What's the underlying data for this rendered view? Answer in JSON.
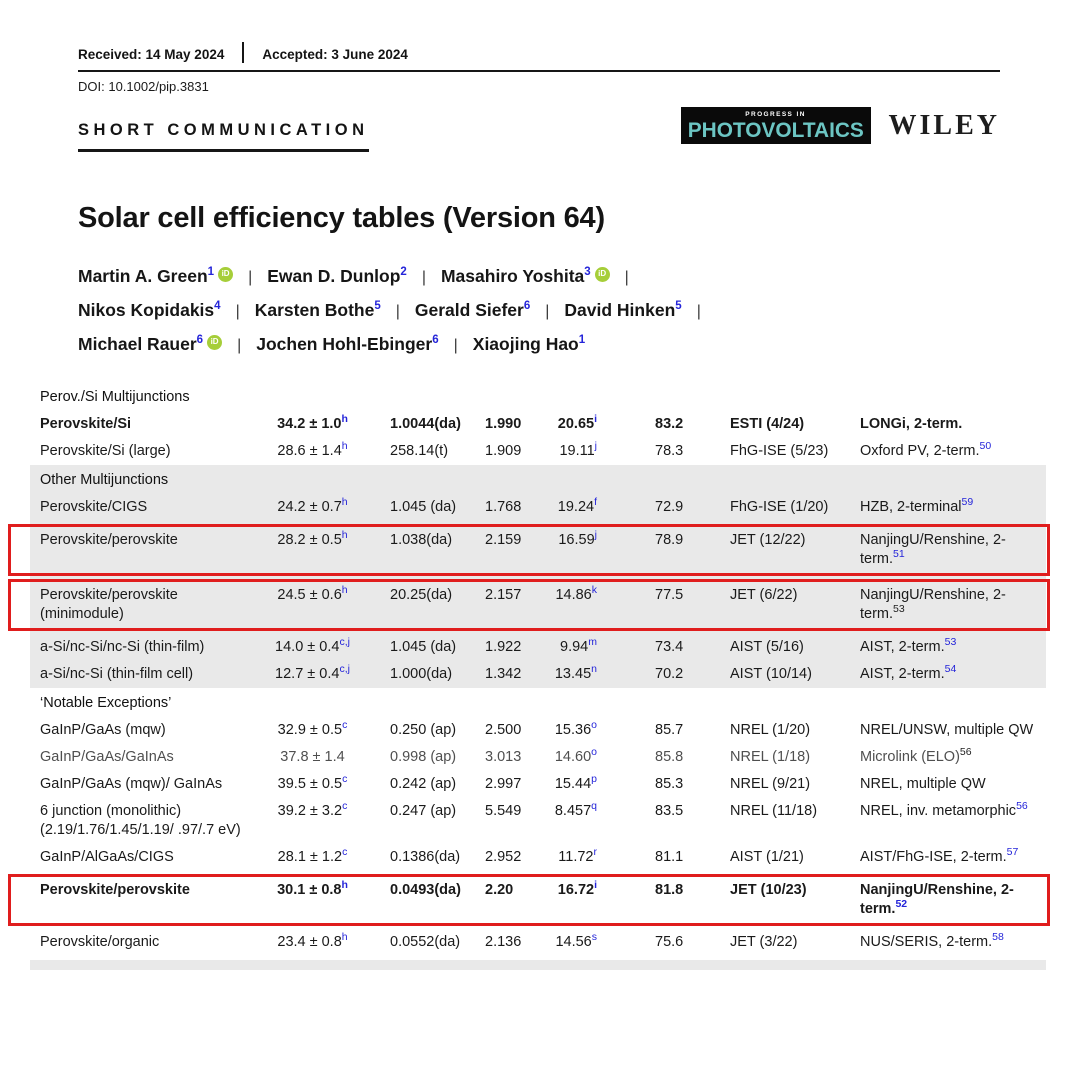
{
  "meta": {
    "received_label": "Received: 14 May 2024",
    "accepted_label": "Accepted: 3 June 2024",
    "doi": "DOI: 10.1002/pip.3831",
    "article_type": "SHORT COMMUNICATION"
  },
  "journal": {
    "tagline": "PROGRESS IN",
    "name": "PHOTOVOLTAICS",
    "publisher": "WILEY"
  },
  "title": "Solar cell efficiency tables (Version 64)",
  "author_lines": [
    {
      "items": [
        {
          "name": "Martin A. Green",
          "sup": "1",
          "orcid": true
        },
        {
          "name": "Ewan D. Dunlop",
          "sup": "2",
          "orcid": false
        },
        {
          "name": "Masahiro Yoshita",
          "sup": "3",
          "orcid": true
        }
      ],
      "trailing_separator": true
    },
    {
      "items": [
        {
          "name": "Nikos Kopidakis",
          "sup": "4",
          "orcid": false
        },
        {
          "name": "Karsten Bothe",
          "sup": "5",
          "orcid": false
        },
        {
          "name": "Gerald Siefer",
          "sup": "6",
          "orcid": false
        },
        {
          "name": "David Hinken",
          "sup": "5",
          "orcid": false
        }
      ],
      "trailing_separator": true
    },
    {
      "items": [
        {
          "name": "Michael Rauer",
          "sup": "6",
          "orcid": true
        },
        {
          "name": "Jochen Hohl-Ebinger",
          "sup": "6",
          "orcid": false
        },
        {
          "name": "Xiaojing Hao",
          "sup": "1",
          "orcid": false
        }
      ],
      "trailing_separator": false
    }
  ],
  "orcid_label": "iD",
  "table": {
    "sections": [
      {
        "label": "Perov./Si Multijunctions",
        "shaded": false,
        "rows": [
          {
            "classification": "Perovskite/Si",
            "bold": true,
            "boxed": false,
            "muted": false,
            "efficiency": "34.2 ± 1.0",
            "eff_sup": "h",
            "area": "1.0044(da)",
            "voc": "1.990",
            "jsc": "20.65",
            "jsc_sup": "i",
            "ff": "83.2",
            "test_centre": "ESTI (4/24)",
            "description": "LONGi, 2-term.",
            "desc_sup": "",
            "desc_sup_blue": false
          },
          {
            "classification": "Perovskite/Si (large)",
            "bold": false,
            "boxed": false,
            "muted": false,
            "efficiency": "28.6 ± 1.4",
            "eff_sup": "h",
            "area": "258.14(t)",
            "voc": "1.909",
            "jsc": "19.11",
            "jsc_sup": "j",
            "ff": "78.3",
            "test_centre": "FhG-ISE (5/23)",
            "description": "Oxford PV, 2-term.",
            "desc_sup": "50",
            "desc_sup_blue": true
          }
        ]
      },
      {
        "label": "Other Multijunctions",
        "shaded": true,
        "rows": [
          {
            "classification": "Perovskite/CIGS",
            "bold": false,
            "boxed": false,
            "muted": false,
            "efficiency": "24.2 ± 0.7",
            "eff_sup": "h",
            "area": "1.045 (da)",
            "voc": "1.768",
            "jsc": "19.24",
            "jsc_sup": "f",
            "ff": "72.9",
            "test_centre": "FhG-ISE (1/20)",
            "description": "HZB, 2-terminal",
            "desc_sup": "59",
            "desc_sup_blue": true
          },
          {
            "classification": "Perovskite/perovskite",
            "bold": false,
            "boxed": true,
            "muted": false,
            "efficiency": "28.2 ± 0.5",
            "eff_sup": "h",
            "area": "1.038(da)",
            "voc": "2.159",
            "jsc": "16.59",
            "jsc_sup": "j",
            "ff": "78.9",
            "test_centre": "JET (12/22)",
            "description": "NanjingU/Renshine, 2-term.",
            "desc_sup": "51",
            "desc_sup_blue": true
          },
          {
            "classification": "Perovskite/perovskite (minimodule)",
            "bold": false,
            "boxed": true,
            "muted": false,
            "efficiency": "24.5 ± 0.6",
            "eff_sup": "h",
            "area": "20.25(da)",
            "voc": "2.157",
            "jsc": "14.86",
            "jsc_sup": "k",
            "ff": "77.5",
            "test_centre": "JET (6/22)",
            "description": "NanjingU/Renshine, 2-term.",
            "desc_sup": "53",
            "desc_sup_blue": false
          },
          {
            "classification": "a-Si/nc-Si/nc-Si (thin-film)",
            "bold": false,
            "boxed": false,
            "muted": false,
            "efficiency": "14.0 ± 0.4",
            "eff_sup": "c,j",
            "area": "1.045 (da)",
            "voc": "1.922",
            "jsc": "9.94",
            "jsc_sup": "m",
            "ff": "73.4",
            "test_centre": "AIST (5/16)",
            "description": "AIST, 2-term.",
            "desc_sup": "53",
            "desc_sup_blue": true
          },
          {
            "classification": "a-Si/nc-Si (thin-film cell)",
            "bold": false,
            "boxed": false,
            "muted": false,
            "efficiency": "12.7 ± 0.4",
            "eff_sup": "c,j",
            "area": "1.000(da)",
            "voc": "1.342",
            "jsc": "13.45",
            "jsc_sup": "n",
            "ff": "70.2",
            "test_centre": "AIST (10/14)",
            "description": "AIST, 2-term.",
            "desc_sup": "54",
            "desc_sup_blue": true
          }
        ]
      },
      {
        "label": "‘Notable Exceptions’",
        "shaded": false,
        "rows": [
          {
            "classification": "GaInP/GaAs (mqw)",
            "bold": false,
            "boxed": false,
            "muted": false,
            "efficiency": "32.9 ± 0.5",
            "eff_sup": "c",
            "area": "0.250 (ap)",
            "voc": "2.500",
            "jsc": "15.36",
            "jsc_sup": "o",
            "ff": "85.7",
            "test_centre": "NREL (1/20)",
            "description": "NREL/UNSW, multiple QW",
            "desc_sup": "",
            "desc_sup_blue": false
          },
          {
            "classification": "GaInP/GaAs/GaInAs",
            "bold": false,
            "boxed": false,
            "muted": true,
            "efficiency": "37.8 ± 1.4",
            "eff_sup": "",
            "area": "0.998 (ap)",
            "voc": "3.013",
            "jsc": "14.60",
            "jsc_sup": "o",
            "ff": "85.8",
            "test_centre": "NREL (1/18)",
            "description": "Microlink (ELO)",
            "desc_sup": "56",
            "desc_sup_blue": false
          },
          {
            "classification": "GaInP/GaAs (mqw)/ GaInAs",
            "bold": false,
            "boxed": false,
            "muted": false,
            "efficiency": "39.5 ± 0.5",
            "eff_sup": "c",
            "area": "0.242 (ap)",
            "voc": "2.997",
            "jsc": "15.44",
            "jsc_sup": "p",
            "ff": "85.3",
            "test_centre": "NREL (9/21)",
            "description": "NREL, multiple QW",
            "desc_sup": "",
            "desc_sup_blue": false
          },
          {
            "classification": "6 junction (monolithic) (2.19/1.76/1.45/1.19/ .97/.7 eV)",
            "bold": false,
            "boxed": false,
            "muted": false,
            "efficiency": "39.2 ± 3.2",
            "eff_sup": "c",
            "area": "0.247 (ap)",
            "voc": "5.549",
            "jsc": "8.457",
            "jsc_sup": "q",
            "ff": "83.5",
            "test_centre": "NREL (11/18)",
            "description": "NREL, inv. metamorphic",
            "desc_sup": "56",
            "desc_sup_blue": true
          },
          {
            "classification": "GaInP/AlGaAs/CIGS",
            "bold": false,
            "boxed": false,
            "muted": false,
            "efficiency": "28.1 ± 1.2",
            "eff_sup": "c",
            "area": "0.1386(da)",
            "voc": "2.952",
            "jsc": "11.72",
            "jsc_sup": "r",
            "ff": "81.1",
            "test_centre": "AIST (1/21)",
            "description": "AIST/FhG-ISE, 2-term.",
            "desc_sup": "57",
            "desc_sup_blue": true
          },
          {
            "classification": "Perovskite/perovskite",
            "bold": true,
            "boxed": true,
            "muted": false,
            "efficiency": "30.1 ± 0.8",
            "eff_sup": "h",
            "area": "0.0493(da)",
            "voc": "2.20",
            "jsc": "16.72",
            "jsc_sup": "i",
            "ff": "81.8",
            "test_centre": "JET (10/23)",
            "description": "NanjingU/Renshine, 2-term.",
            "desc_sup": "52",
            "desc_sup_blue": true
          },
          {
            "classification": "Perovskite/organic",
            "bold": false,
            "boxed": false,
            "muted": false,
            "efficiency": "23.4 ± 0.8",
            "eff_sup": "h",
            "area": "0.0552(da)",
            "voc": "2.136",
            "jsc": "14.56",
            "jsc_sup": "s",
            "ff": "75.6",
            "test_centre": "JET (3/22)",
            "description": "NUS/SERIS, 2-term.",
            "desc_sup": "58",
            "desc_sup_blue": true
          }
        ]
      }
    ]
  },
  "colors": {
    "link_blue": "#2424d9",
    "highlight_red": "#e01d1d",
    "shaded_band": "#e9e9e9",
    "logo_teal": "#6cc5c3",
    "orcid_green": "#a6ce39"
  }
}
